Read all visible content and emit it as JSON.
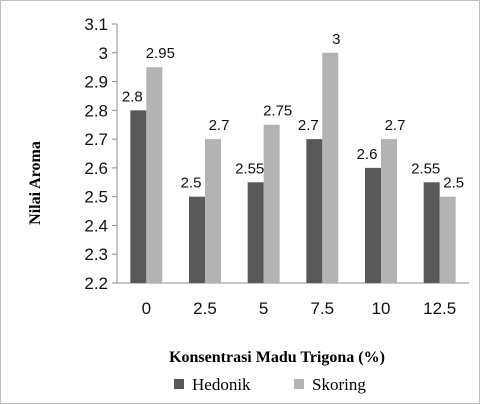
{
  "chart_data": {
    "type": "bar",
    "xlabel": "Konsentrasi Madu Trigona (%)",
    "ylabel": "Nilai Aroma",
    "categories": [
      "0",
      "2.5",
      "5",
      "7.5",
      "10",
      "12.5"
    ],
    "ylim": [
      2.2,
      3.1
    ],
    "yticks": [
      "2.2",
      "2.3",
      "2.4",
      "2.5",
      "2.6",
      "2.7",
      "2.8",
      "2.9",
      "3",
      "3.1"
    ],
    "grid": false,
    "legend_position": "bottom",
    "series": [
      {
        "name": "Hedonik",
        "values": [
          2.8,
          2.5,
          2.55,
          2.7,
          2.6,
          2.55
        ],
        "labels": [
          "2.8",
          "2.5",
          "2.55",
          "2.7",
          "2.6",
          "2.55"
        ],
        "color": "#595959"
      },
      {
        "name": "Skoring",
        "values": [
          2.95,
          2.7,
          2.75,
          3,
          2.7,
          2.5
        ],
        "labels": [
          "2.95",
          "2.7",
          "2.75",
          "3",
          "2.7",
          "2.5"
        ],
        "color": "#b3b3b3"
      }
    ]
  }
}
